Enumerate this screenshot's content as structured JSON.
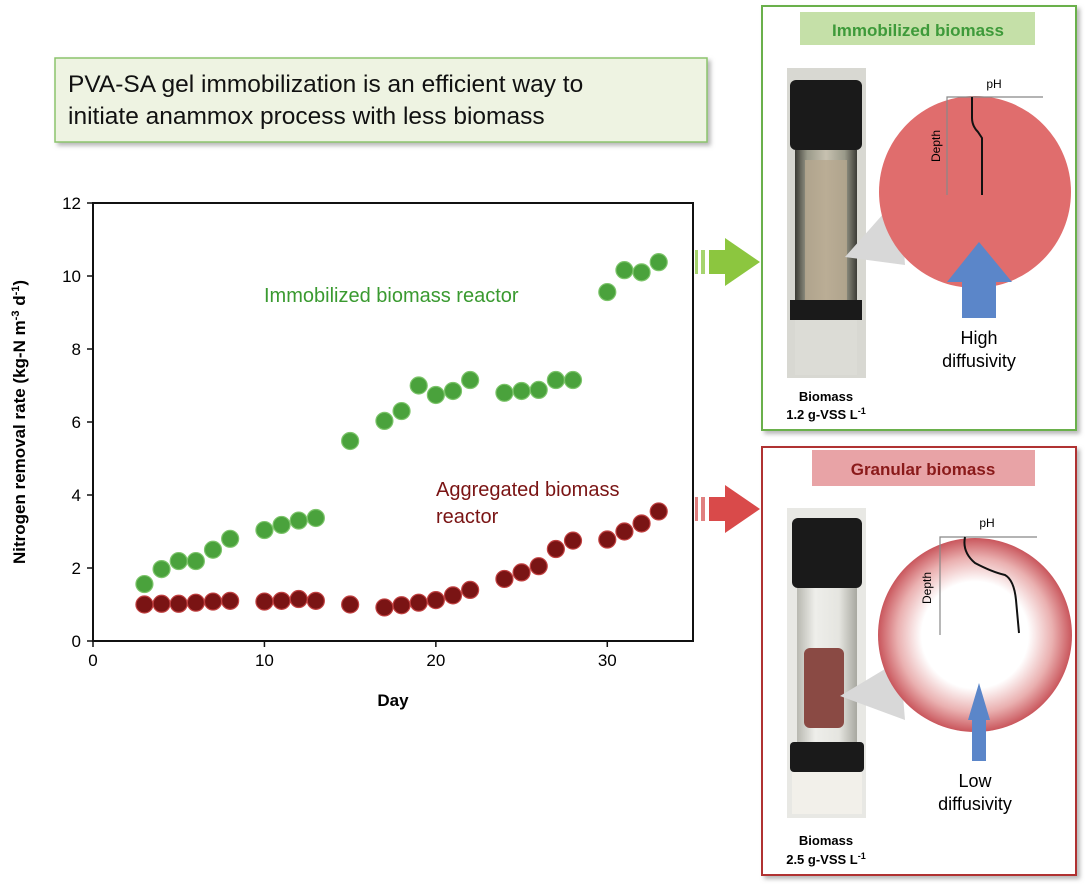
{
  "headline": {
    "line1": "PVA-SA gel immobilization is an efficient way to",
    "line2": "initiate anammox process with less biomass"
  },
  "colors": {
    "immobilized": "#4aa23c",
    "aggregated": "#7a1414",
    "green_panel_border": "#6ab04c",
    "red_panel_border": "#b03030",
    "circle_red": "#e06d6d",
    "arrow_blue": "#5b86c9"
  },
  "chart_data": {
    "type": "scatter",
    "xlabel": "Day",
    "ylabel": "Nitrogen removal rate (kg-N m",
    "ylabel_sup1": "-3",
    "ylabel_mid": " d",
    "ylabel_sup2": "-1",
    "ylabel_end": ")",
    "xlim": [
      0,
      35
    ],
    "ylim": [
      0,
      12
    ],
    "xticks": [
      "0",
      "10",
      "20",
      "30"
    ],
    "yticks": [
      "0",
      "2",
      "4",
      "6",
      "8",
      "10",
      "12"
    ],
    "grid": false,
    "series": [
      {
        "name": "Immobilized biomass reactor",
        "color": "#4aa23c",
        "x": [
          3,
          4,
          5,
          6,
          7,
          8,
          10,
          11,
          12,
          13,
          15,
          17,
          18,
          19,
          20,
          21,
          22,
          24,
          25,
          26,
          27,
          28,
          30,
          31,
          32,
          33
        ],
        "y": [
          1.56,
          1.97,
          2.19,
          2.19,
          2.5,
          2.8,
          3.04,
          3.18,
          3.3,
          3.37,
          5.48,
          6.03,
          6.3,
          7.0,
          6.74,
          6.85,
          7.15,
          6.8,
          6.85,
          6.88,
          7.15,
          7.15,
          9.56,
          10.16,
          10.1,
          10.38
        ]
      },
      {
        "name": "Aggregated biomass reactor",
        "name_line1": "Aggregated biomass",
        "name_line2": "reactor",
        "color": "#7a1414",
        "x": [
          3,
          4,
          5,
          6,
          7,
          8,
          10,
          11,
          12,
          13,
          15,
          17,
          18,
          19,
          20,
          21,
          22,
          24,
          25,
          26,
          27,
          28,
          30,
          31,
          32,
          33
        ],
        "y": [
          1.0,
          1.02,
          1.02,
          1.05,
          1.08,
          1.1,
          1.08,
          1.1,
          1.15,
          1.1,
          1.0,
          0.92,
          0.98,
          1.05,
          1.12,
          1.25,
          1.4,
          1.7,
          1.88,
          2.05,
          2.52,
          2.75,
          2.78,
          3.0,
          3.22,
          3.55
        ]
      }
    ]
  },
  "panels": {
    "immobilized": {
      "title": "Immobilized biomass",
      "ph_label": "pH",
      "depth_label": "Depth",
      "diffusivity_line1": "High",
      "diffusivity_line2": "diffusivity",
      "biomass_line1": "Biomass",
      "biomass_value": "1.2 g-VSS L",
      "biomass_sup": "-1"
    },
    "granular": {
      "title": "Granular biomass",
      "ph_label": "pH",
      "depth_label": "Depth",
      "diffusivity_line1": "Low",
      "diffusivity_line2": "diffusivity",
      "biomass_line1": "Biomass",
      "biomass_value": "2.5 g-VSS L",
      "biomass_sup": "-1"
    }
  }
}
